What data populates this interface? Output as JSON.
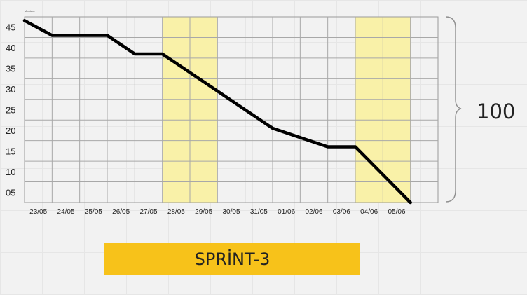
{
  "sprint_label": "SPRİNT-3",
  "total_label": "100",
  "chart_data": {
    "type": "line",
    "title": "",
    "tiny_label": "Mentem",
    "xlabel": "",
    "ylabel": "",
    "x_ticks": [
      "23/05",
      "24/05",
      "25/05",
      "26/05",
      "27/05",
      "28/05",
      "29/05",
      "30/05",
      "31/05",
      "01/06",
      "02/06",
      "03/06",
      "04/06",
      "05/06"
    ],
    "y_ticks": [
      "05",
      "10",
      "15",
      "20",
      "25",
      "30",
      "35",
      "40",
      "45"
    ],
    "ylim": [
      0,
      50
    ],
    "series": [
      {
        "color": "#000000",
        "points": [
          {
            "x": 0,
            "y": 49
          },
          {
            "x": 1,
            "y": 45
          },
          {
            "x": 2,
            "y": 45
          },
          {
            "x": 3,
            "y": 45
          },
          {
            "x": 4,
            "y": 40
          },
          {
            "x": 5,
            "y": 40
          },
          {
            "x": 9,
            "y": 20
          },
          {
            "x": 11,
            "y": 15
          },
          {
            "x": 12,
            "y": 15
          },
          {
            "x": 14,
            "y": 0
          }
        ]
      }
    ],
    "highlighted_columns": [
      6,
      7,
      13,
      14
    ],
    "highlight_color": "#f9f1a8",
    "grid": true
  }
}
